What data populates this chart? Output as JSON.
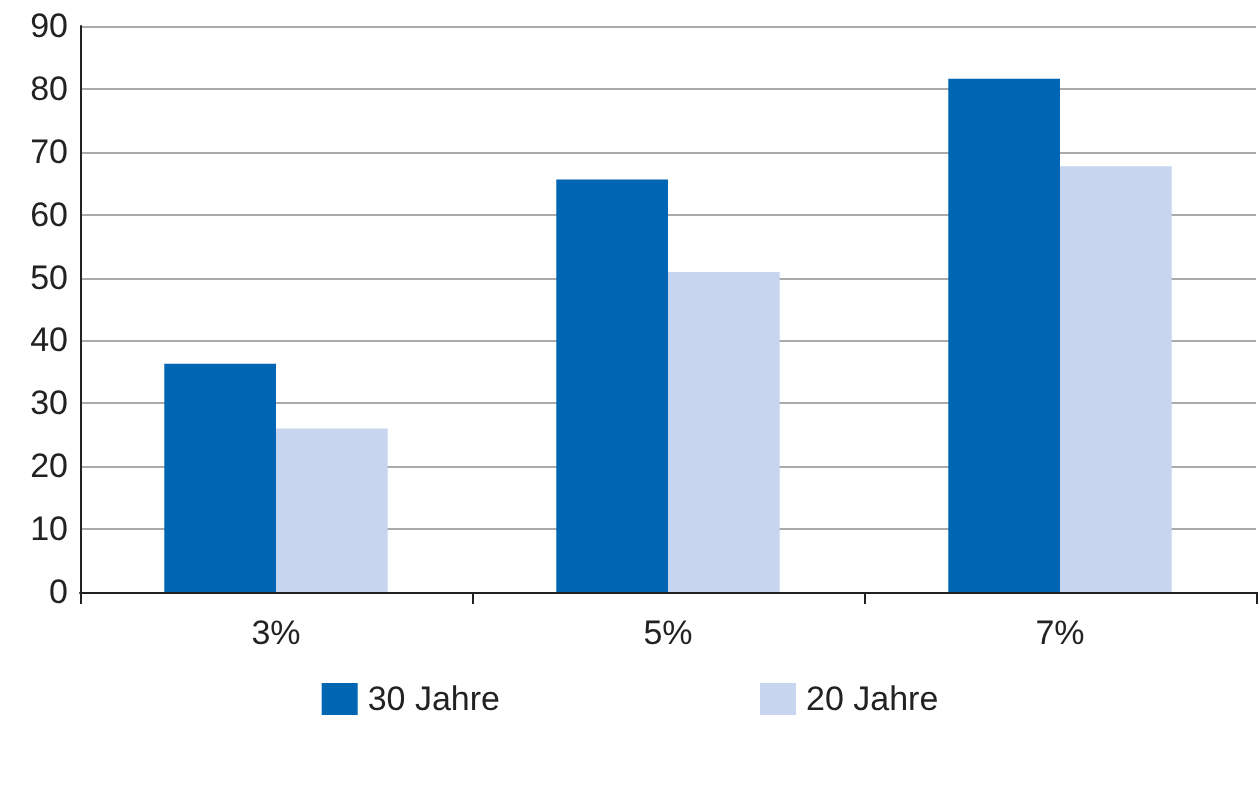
{
  "chart_data": {
    "type": "bar",
    "categories": [
      "3%",
      "5%",
      "7%"
    ],
    "series": [
      {
        "name": "30 Jahre",
        "color": "#0066b3",
        "values": [
          36.3,
          65.6,
          81.6
        ]
      },
      {
        "name": "20 Jahre",
        "color": "#c8d5ee",
        "values": [
          26,
          50.9,
          67.7
        ]
      }
    ],
    "ylim": [
      0,
      90
    ],
    "yticks": [
      0,
      10,
      20,
      30,
      40,
      50,
      60,
      70,
      80,
      90
    ],
    "grid": "y",
    "legend": "bottom"
  }
}
